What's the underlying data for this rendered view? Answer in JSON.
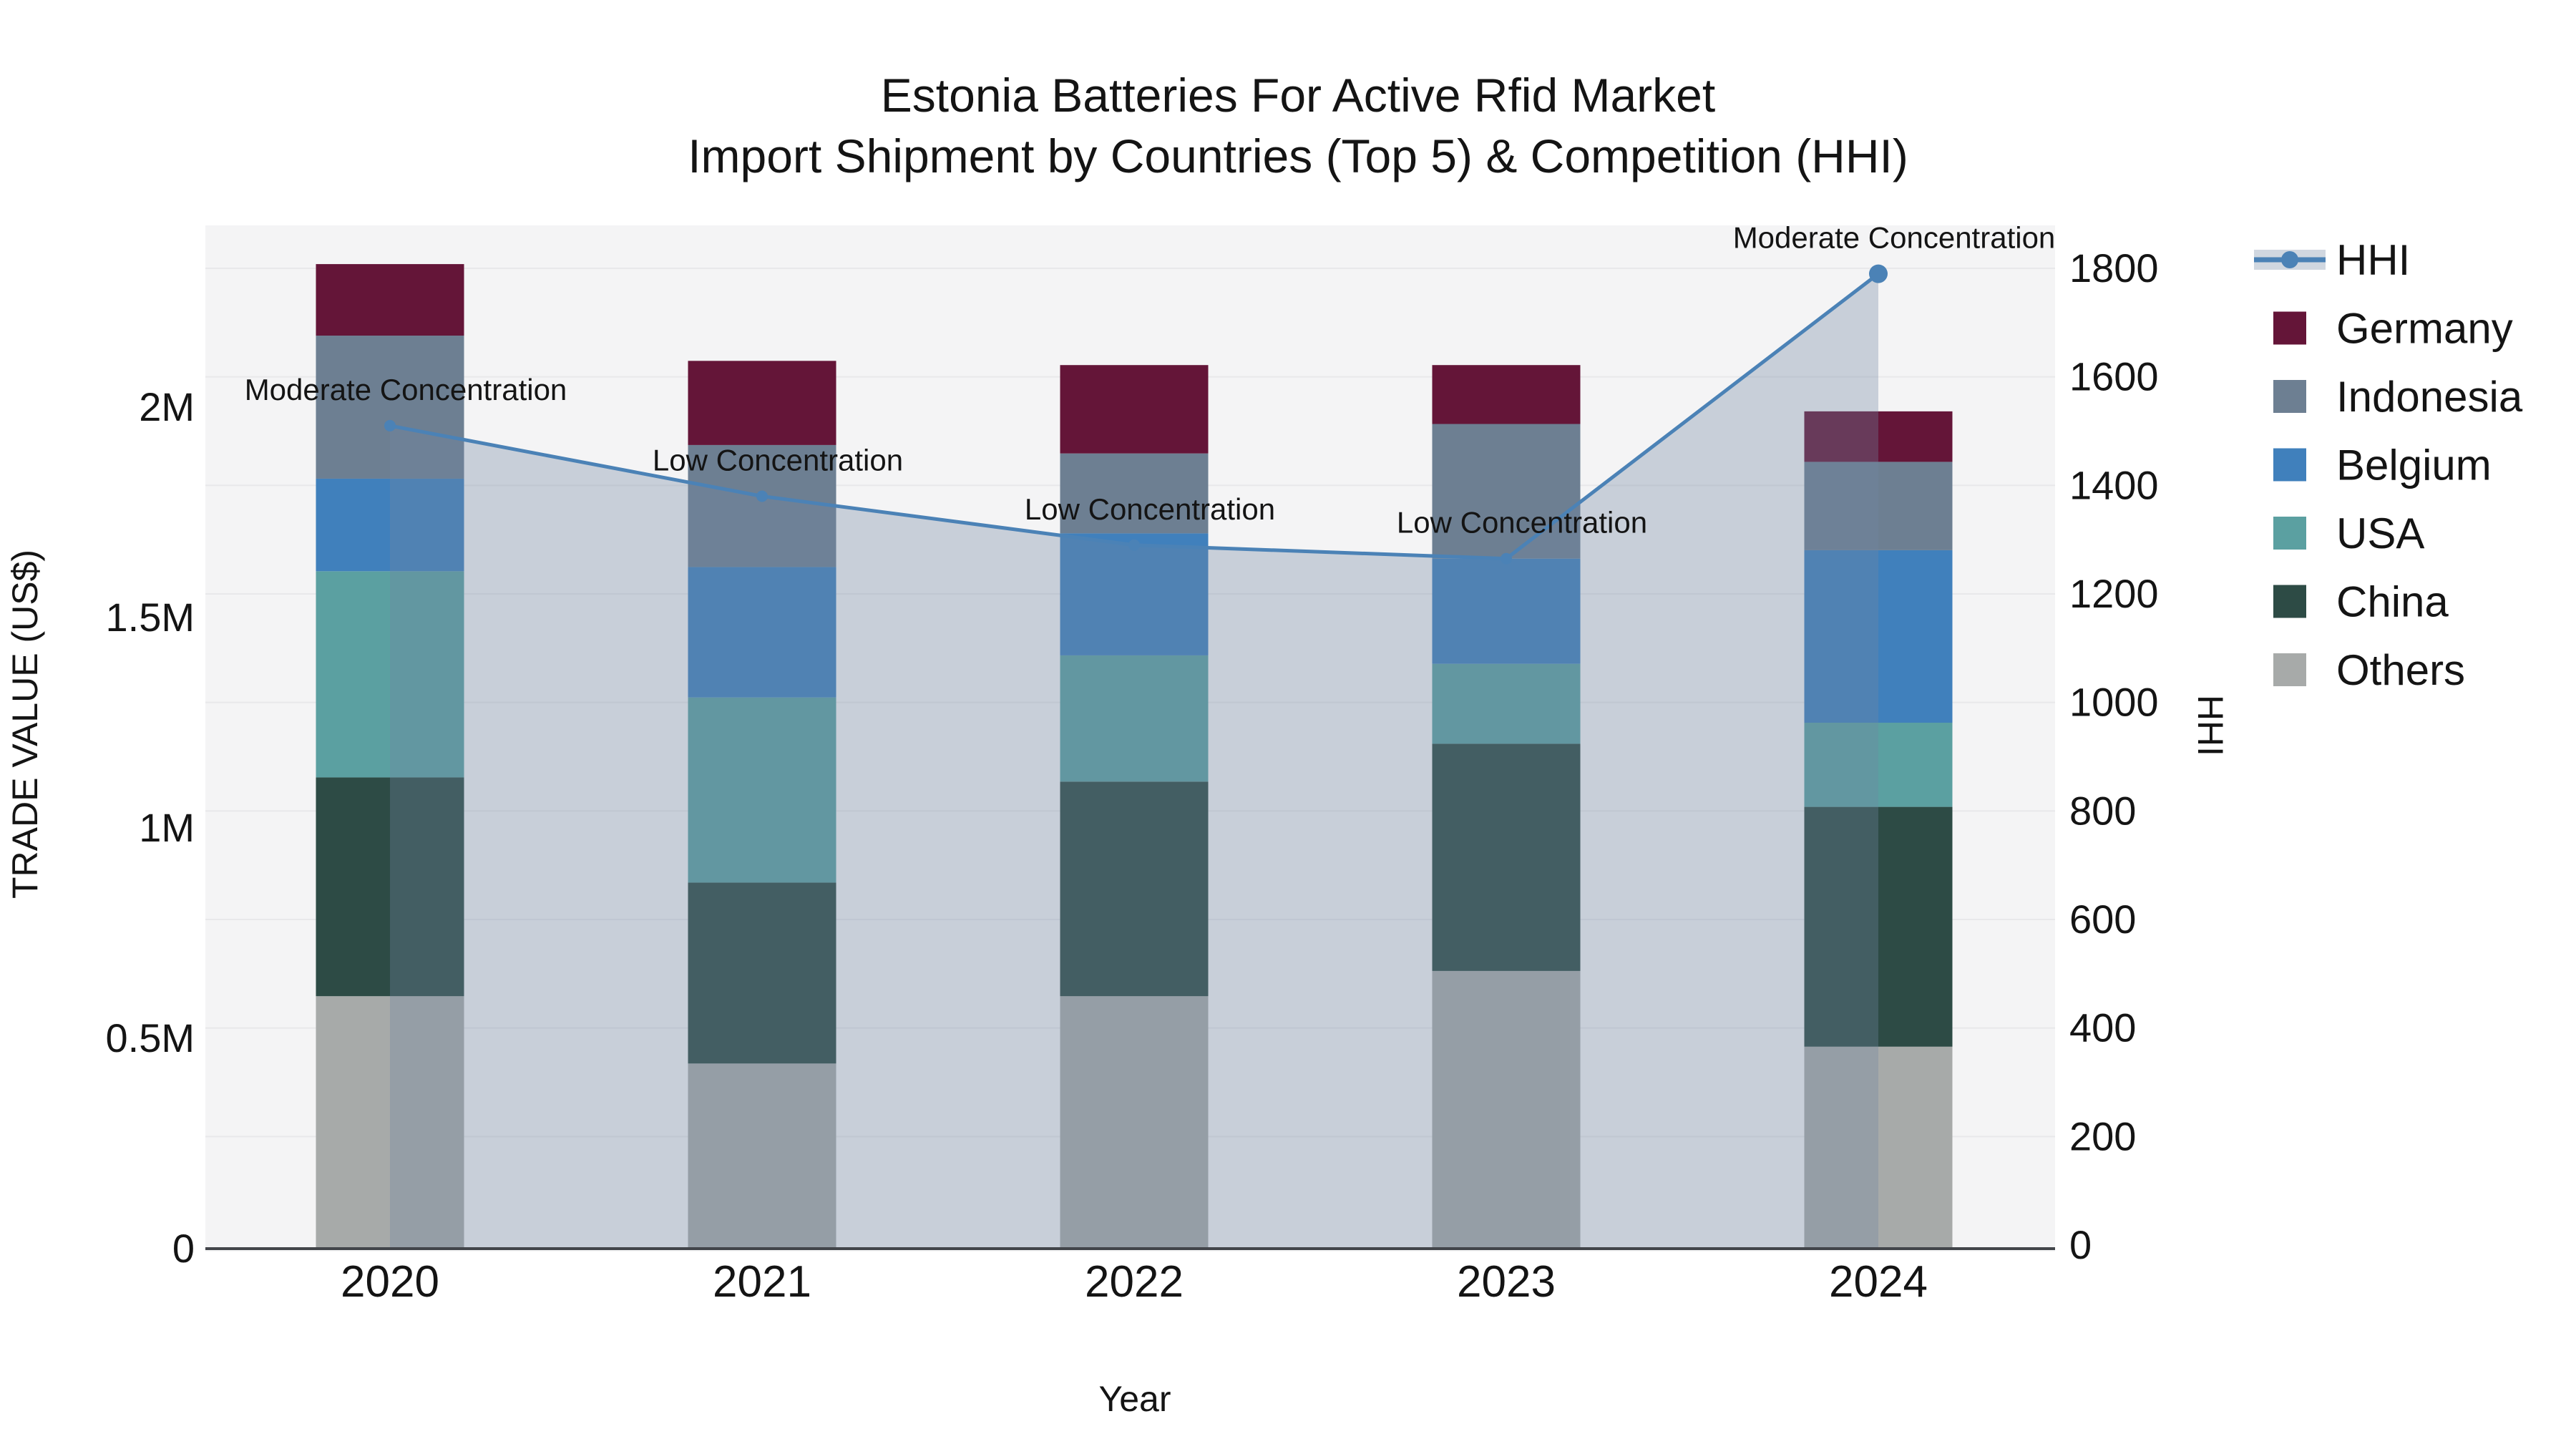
{
  "title": {
    "line1": "Estonia Batteries For Active Rfid Market",
    "line2": "Import Shipment by Countries (Top 5) & Competition (HHI)"
  },
  "axes": {
    "x": {
      "label": "Year",
      "categories": [
        "2020",
        "2021",
        "2022",
        "2023",
        "2024"
      ]
    },
    "y_left": {
      "label": "TRADE VALUE (US$)",
      "tick_labels": [
        "0",
        "0.5M",
        "1M",
        "1.5M",
        "2M"
      ],
      "tick_values": [
        0,
        0.5,
        1,
        1.5,
        2
      ]
    },
    "y_right": {
      "label": "HHI",
      "tick_min": 0,
      "tick_max": 1800,
      "tick_step": 200
    }
  },
  "legend": {
    "position": "right",
    "items": [
      "HHI",
      "Germany",
      "Indonesia",
      "Belgium",
      "USA",
      "China",
      "Others"
    ]
  },
  "colors": {
    "Germany": "#641538",
    "Indonesia": "#6d7f92",
    "Belgium": "#4080bc",
    "USA": "#5ba0a1",
    "China": "#2d4b45",
    "Others": "#a7aaa9",
    "hhi_line": "#4b82b6",
    "hhi_area": "rgba(113,134,162,0.33)",
    "hhi_legend_band": "#d0d7e0",
    "plot_bg": "#f4f4f5",
    "grid": "#e8e8ea",
    "axis_line": "#42454a",
    "text": "#141414"
  },
  "chart_data": {
    "type": "bar",
    "subtype": "stacked-bars-with-line-overlay-and-area-fill",
    "categories": [
      "2020",
      "2021",
      "2022",
      "2023",
      "2024"
    ],
    "unit": "US$ millions",
    "stack_order_bottom_to_top": [
      "Others",
      "China",
      "USA",
      "Belgium",
      "Indonesia",
      "Germany"
    ],
    "series": [
      {
        "name": "Others",
        "values": [
          0.6,
          0.44,
          0.6,
          0.66,
          0.48
        ]
      },
      {
        "name": "China",
        "values": [
          0.52,
          0.43,
          0.51,
          0.54,
          0.57
        ]
      },
      {
        "name": "USA",
        "values": [
          0.49,
          0.44,
          0.3,
          0.19,
          0.2
        ]
      },
      {
        "name": "Belgium",
        "values": [
          0.22,
          0.31,
          0.29,
          0.25,
          0.41
        ]
      },
      {
        "name": "Indonesia",
        "values": [
          0.34,
          0.29,
          0.19,
          0.32,
          0.21
        ]
      },
      {
        "name": "Germany",
        "values": [
          0.17,
          0.2,
          0.21,
          0.14,
          0.12
        ]
      }
    ],
    "bar_totals": [
      2.34,
      2.11,
      2.1,
      2.1,
      1.99
    ],
    "line_series": {
      "name": "HHI",
      "axis": "right",
      "values": [
        1510,
        1380,
        1290,
        1265,
        1790
      ],
      "area_fill": true,
      "markers": true
    },
    "annotations": [
      {
        "category": "2020",
        "text": "Moderate Concentration"
      },
      {
        "category": "2021",
        "text": "Low Concentration"
      },
      {
        "category": "2022",
        "text": "Low Concentration"
      },
      {
        "category": "2023",
        "text": "Low Concentration"
      },
      {
        "category": "2024",
        "text": "Moderate Concentration"
      }
    ],
    "xlabel": "Year",
    "ylabel_left": "TRADE VALUE (US$)",
    "ylabel_right": "HHI",
    "ylim_left": [
      0,
      2.42
    ],
    "ylim_right": [
      0,
      1873
    ],
    "grid": "horizontal gridlines aligned to right (HHI) axis every 200",
    "legend_position": "right"
  }
}
